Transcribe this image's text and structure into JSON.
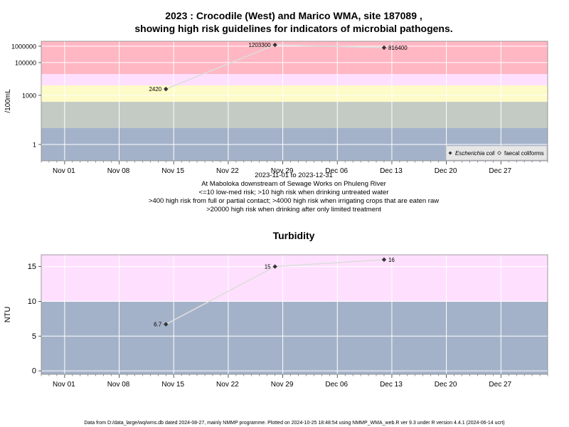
{
  "top_title": {
    "line1": "2023 : Crocodile (West) and Marico WMA, site 187089 ,",
    "line2": "showing high risk guidelines for indicators of microbial pathogens."
  },
  "caption": {
    "line1": "2023-11-01 to 2023-12-31",
    "line2": "At Maboloka downstream of Sewage Works on Phuleng River",
    "line3": "<=10 low-med risk; >10 high risk when drinking untreated water",
    "line4": ">400 high risk from full or partial contact; >4000 high risk when irrigating crops that are eaten raw",
    "line5": ">20000 high risk when drinking after only limited treatment"
  },
  "footer": "Data from D:/data_large/wq/wms.db dated 2024-08-27, mainly NMMP programme. Plotted on 2024-10-25 18:48:54 using NMMP_WMA_web.R ver 9.3 under R version 4.4.1 (2024-06-14 ucrt)",
  "colors": {
    "red_band": "#ffb7c3",
    "pink_band": "#fee0fe",
    "yellow_band": "#fdfbc7",
    "green_band": "#c4cbc4",
    "blue_band": "#a4b2c9",
    "grid": "#ffffff",
    "line": "#dddddd",
    "point": "#333333"
  },
  "x_ticks": [
    "Nov 01",
    "Nov 08",
    "Nov 15",
    "Nov 22",
    "Nov 29",
    "Dec 06",
    "Dec 13",
    "Dec 20",
    "Dec 27"
  ],
  "chart_data": [
    {
      "type": "line",
      "title": "",
      "xlabel": "",
      "ylabel": "/100mL",
      "y_scale": "log",
      "yticks": [
        "1",
        "1000",
        "100000",
        "1000000"
      ],
      "ylim": [
        0.1,
        2000000
      ],
      "xlim": [
        "2023-10-29",
        "2024-01-02"
      ],
      "bands": [
        {
          "range": [
            20000,
            2000000
          ],
          "color": "#ffb7c3"
        },
        {
          "range": [
            4000,
            20000
          ],
          "color": "#fee0fe"
        },
        {
          "range": [
            400,
            4000
          ],
          "color": "#fdfbc7"
        },
        {
          "range": [
            10,
            400
          ],
          "color": "#c4cbc4"
        },
        {
          "range": [
            0.1,
            10
          ],
          "color": "#a4b2c9"
        }
      ],
      "legend": {
        "position": "bottom-right",
        "entries": [
          "Escherichia coli",
          "faecal coliforms"
        ]
      },
      "series": [
        {
          "name": "Escherichia coli",
          "x": [
            "2023-11-14",
            "2023-11-28",
            "2023-12-12"
          ],
          "values": [
            2420,
            1203300,
            816400
          ],
          "labels": [
            "2420",
            "1203300",
            "816400"
          ]
        }
      ]
    },
    {
      "type": "line",
      "title": "Turbidity",
      "xlabel": "",
      "ylabel": "NTU",
      "yticks": [
        "0",
        "5",
        "10",
        "15"
      ],
      "ylim": [
        -0.5,
        16.7
      ],
      "xlim": [
        "2023-10-29",
        "2024-01-02"
      ],
      "bands": [
        {
          "range": [
            10,
            16.7
          ],
          "color": "#fee0fe"
        },
        {
          "range": [
            -0.5,
            10
          ],
          "color": "#a4b2c9"
        }
      ],
      "series": [
        {
          "x": [
            "2023-11-14",
            "2023-11-28",
            "2023-12-12"
          ],
          "values": [
            6.7,
            15,
            16
          ],
          "labels": [
            "6.7",
            "15",
            "16"
          ]
        }
      ]
    }
  ]
}
